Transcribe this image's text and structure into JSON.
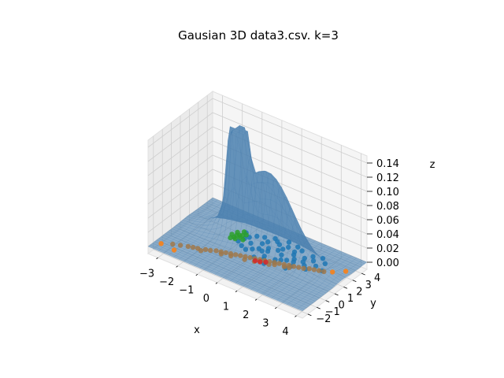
{
  "chart_data": {
    "type": "surface3d-scatter",
    "title": "Gausian 3D data3.csv. k=3",
    "xlabel": "x",
    "ylabel": "y",
    "zlabel": "z",
    "xlim": [
      -3.5,
      4.3
    ],
    "ylim": [
      -2.6,
      4.6
    ],
    "zlim": [
      -0.01,
      0.15
    ],
    "x_ticks": [
      "−3",
      "−2",
      "−1",
      "0",
      "1",
      "2",
      "3",
      "4"
    ],
    "y_ticks": [
      "−2",
      "−1",
      "0",
      "1",
      "2",
      "3",
      "4"
    ],
    "z_ticks": [
      "0.00",
      "0.02",
      "0.04",
      "0.06",
      "0.08",
      "0.10",
      "0.12",
      "0.14"
    ],
    "x_tick_values": [
      -3,
      -2,
      -1,
      0,
      1,
      2,
      3,
      4
    ],
    "y_tick_values": [
      -2,
      -1,
      0,
      1,
      2,
      3,
      4
    ],
    "z_tick_values": [
      0,
      0.02,
      0.04,
      0.06,
      0.08,
      0.1,
      0.12,
      0.14
    ],
    "grid": true,
    "surface": {
      "kind": "gaussian mixture density",
      "color": "#4c81b0",
      "components": [
        {
          "weight": 0.25,
          "mean": [
            -1.0,
            2.0
          ],
          "sigma": [
            0.28,
            0.35
          ]
        },
        {
          "weight": 0.55,
          "mean": [
            0.5,
            1.8
          ],
          "sigma": [
            1.3,
            0.6
          ]
        }
      ]
    },
    "series": [
      {
        "color": "#1f77b4",
        "points": [
          [
            0.4,
            1.5
          ],
          [
            0.9,
            2.2
          ],
          [
            1.2,
            1.9
          ],
          [
            0.2,
            2.6
          ],
          [
            -0.3,
            1.8
          ],
          [
            1.6,
            2.4
          ],
          [
            0.7,
            1.1
          ],
          [
            1.9,
            1.7
          ],
          [
            -0.6,
            2.3
          ],
          [
            1.1,
            2.9
          ],
          [
            0.0,
            1.3
          ],
          [
            2.2,
            2.1
          ],
          [
            0.5,
            2.0
          ],
          [
            1.4,
            1.4
          ],
          [
            -0.1,
            2.9
          ],
          [
            2.5,
            2.6
          ],
          [
            0.8,
            0.8
          ],
          [
            1.7,
            3.1
          ],
          [
            -0.8,
            1.5
          ],
          [
            0.3,
            3.2
          ],
          [
            2.0,
            1.2
          ],
          [
            1.0,
            2.5
          ],
          [
            -0.4,
            2.7
          ],
          [
            2.8,
            2.2
          ],
          [
            0.6,
            1.7
          ],
          [
            1.3,
            0.9
          ],
          [
            0.1,
            2.2
          ],
          [
            2.3,
            3.0
          ],
          [
            1.8,
            2.0
          ],
          [
            -0.2,
            1.0
          ],
          [
            0.9,
            3.4
          ],
          [
            2.6,
            1.5
          ],
          [
            1.5,
            2.7
          ],
          [
            -0.7,
            2.0
          ],
          [
            0.4,
            0.6
          ],
          [
            3.0,
            2.8
          ],
          [
            1.2,
            1.2
          ],
          [
            0.7,
            2.8
          ],
          [
            2.1,
            2.5
          ],
          [
            -0.5,
            1.2
          ],
          [
            1.6,
            1.6
          ],
          [
            0.2,
            1.6
          ],
          [
            2.4,
            1.8
          ],
          [
            1.0,
            0.4
          ],
          [
            3.2,
            2.0
          ],
          [
            0.5,
            3.0
          ],
          [
            1.9,
            0.8
          ],
          [
            -0.9,
            2.6
          ],
          [
            1.4,
            3.3
          ],
          [
            2.7,
            3.2
          ]
        ]
      },
      {
        "color": "#ff7f0e",
        "points": [
          [
            -3.2,
            -1.8
          ],
          [
            3.6,
            2.3
          ],
          [
            4.0,
            2.9
          ],
          [
            -2.5,
            -1.9
          ]
        ]
      },
      {
        "color": "#2ca02c",
        "points": [
          [
            -1.1,
            1.7
          ],
          [
            -1.0,
            2.1
          ],
          [
            -0.9,
            1.9
          ],
          [
            -1.2,
            2.3
          ],
          [
            -1.0,
            1.6
          ],
          [
            -0.8,
            2.4
          ],
          [
            -1.1,
            2.0
          ],
          [
            -0.9,
            2.2
          ],
          [
            -1.3,
            1.9
          ],
          [
            -1.0,
            2.6
          ],
          [
            -0.7,
            1.8
          ],
          [
            -1.2,
            1.5
          ]
        ]
      },
      {
        "color": "#a0784a",
        "points": [
          [
            -2.8,
            -1.4
          ],
          [
            -2.5,
            -1.2
          ],
          [
            -2.2,
            -1.0
          ],
          [
            -2.0,
            -0.9
          ],
          [
            -1.8,
            -0.8
          ],
          [
            -1.5,
            -0.6
          ],
          [
            -1.3,
            -0.5
          ],
          [
            -1.1,
            -0.3
          ],
          [
            -0.9,
            -0.2
          ],
          [
            -0.7,
            -0.1
          ],
          [
            -0.5,
            0.0
          ],
          [
            -0.3,
            0.1
          ],
          [
            -0.1,
            0.2
          ],
          [
            0.1,
            0.3
          ],
          [
            0.3,
            0.4
          ],
          [
            0.5,
            0.5
          ],
          [
            0.7,
            0.6
          ],
          [
            0.9,
            0.7
          ],
          [
            1.1,
            0.8
          ],
          [
            1.3,
            0.9
          ],
          [
            1.5,
            1.0
          ],
          [
            1.7,
            1.1
          ],
          [
            1.9,
            1.2
          ],
          [
            2.1,
            1.3
          ],
          [
            2.3,
            1.4
          ],
          [
            2.5,
            1.5
          ],
          [
            2.7,
            1.7
          ],
          [
            2.9,
            1.8
          ],
          [
            3.1,
            1.9
          ],
          [
            3.3,
            2.0
          ],
          [
            -0.4,
            -0.2
          ],
          [
            0.2,
            0.0
          ],
          [
            0.8,
            0.4
          ],
          [
            1.4,
            0.7
          ],
          [
            2.0,
            1.0
          ],
          [
            -1.6,
            -0.9
          ],
          [
            -0.8,
            -0.4
          ],
          [
            0.6,
            0.2
          ],
          [
            1.2,
            0.5
          ],
          [
            1.8,
            0.9
          ]
        ]
      },
      {
        "color": "#d62728",
        "points": [
          [
            0.8,
            0.4
          ],
          [
            0.6,
            0.3
          ],
          [
            1.0,
            0.6
          ]
        ]
      }
    ]
  }
}
